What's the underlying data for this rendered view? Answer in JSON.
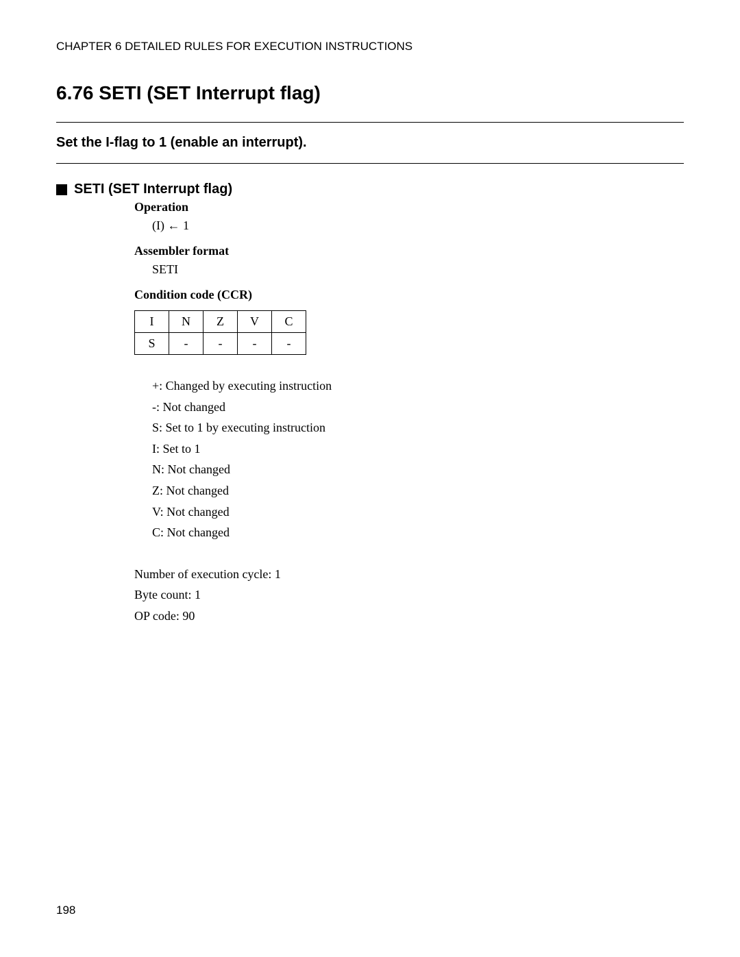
{
  "chapter_header": "CHAPTER 6  DETAILED RULES FOR EXECUTION INSTRUCTIONS",
  "section_title": "6.76   SETI (SET Interrupt flag)",
  "subtitle": "Set the I-flag to 1 (enable an interrupt).",
  "subsection_title": "SETI (SET Interrupt flag)",
  "operation": {
    "label": "Operation",
    "text": "(I) ← 1"
  },
  "assembler": {
    "label": "Assembler format",
    "text": "SETI"
  },
  "ccr": {
    "label": "Condition code (CCR)",
    "headers": [
      "I",
      "N",
      "Z",
      "V",
      "C"
    ],
    "values": [
      "S",
      "-",
      "-",
      "-",
      "-"
    ]
  },
  "legend": [
    "+: Changed by executing instruction",
    "-: Not changed",
    "S: Set to 1 by executing instruction",
    "I: Set to 1",
    "N: Not changed",
    "Z: Not changed",
    "V: Not changed",
    "C: Not changed"
  ],
  "footer": [
    "Number of execution cycle: 1",
    "Byte count: 1",
    "OP code: 90"
  ],
  "page_number": "198"
}
